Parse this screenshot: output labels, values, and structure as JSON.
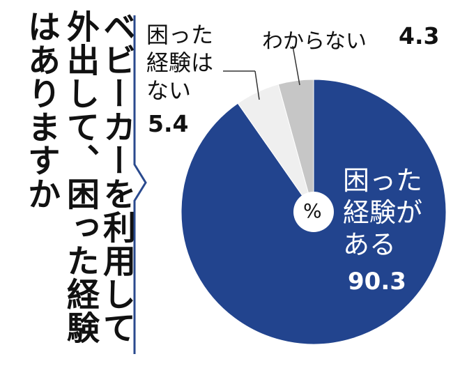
{
  "title": {
    "lines": [
      "はありますか",
      "外出して、困った経験",
      "ベビーカーを利用して"
    ]
  },
  "chart_data": {
    "type": "pie",
    "center_label": "%",
    "slices": [
      {
        "label_lines": [
          "困った",
          "経験が",
          "ある"
        ],
        "value": 90.3,
        "value_text": "90.3",
        "color": "#22448e"
      },
      {
        "label_lines": [
          "困った",
          "経験は",
          "ない"
        ],
        "value": 5.4,
        "value_text": "5.4",
        "color": "#efefef"
      },
      {
        "label_lines": [
          "わからない"
        ],
        "value": 4.3,
        "value_text": "4.3",
        "color": "#c6c6c6"
      }
    ]
  }
}
